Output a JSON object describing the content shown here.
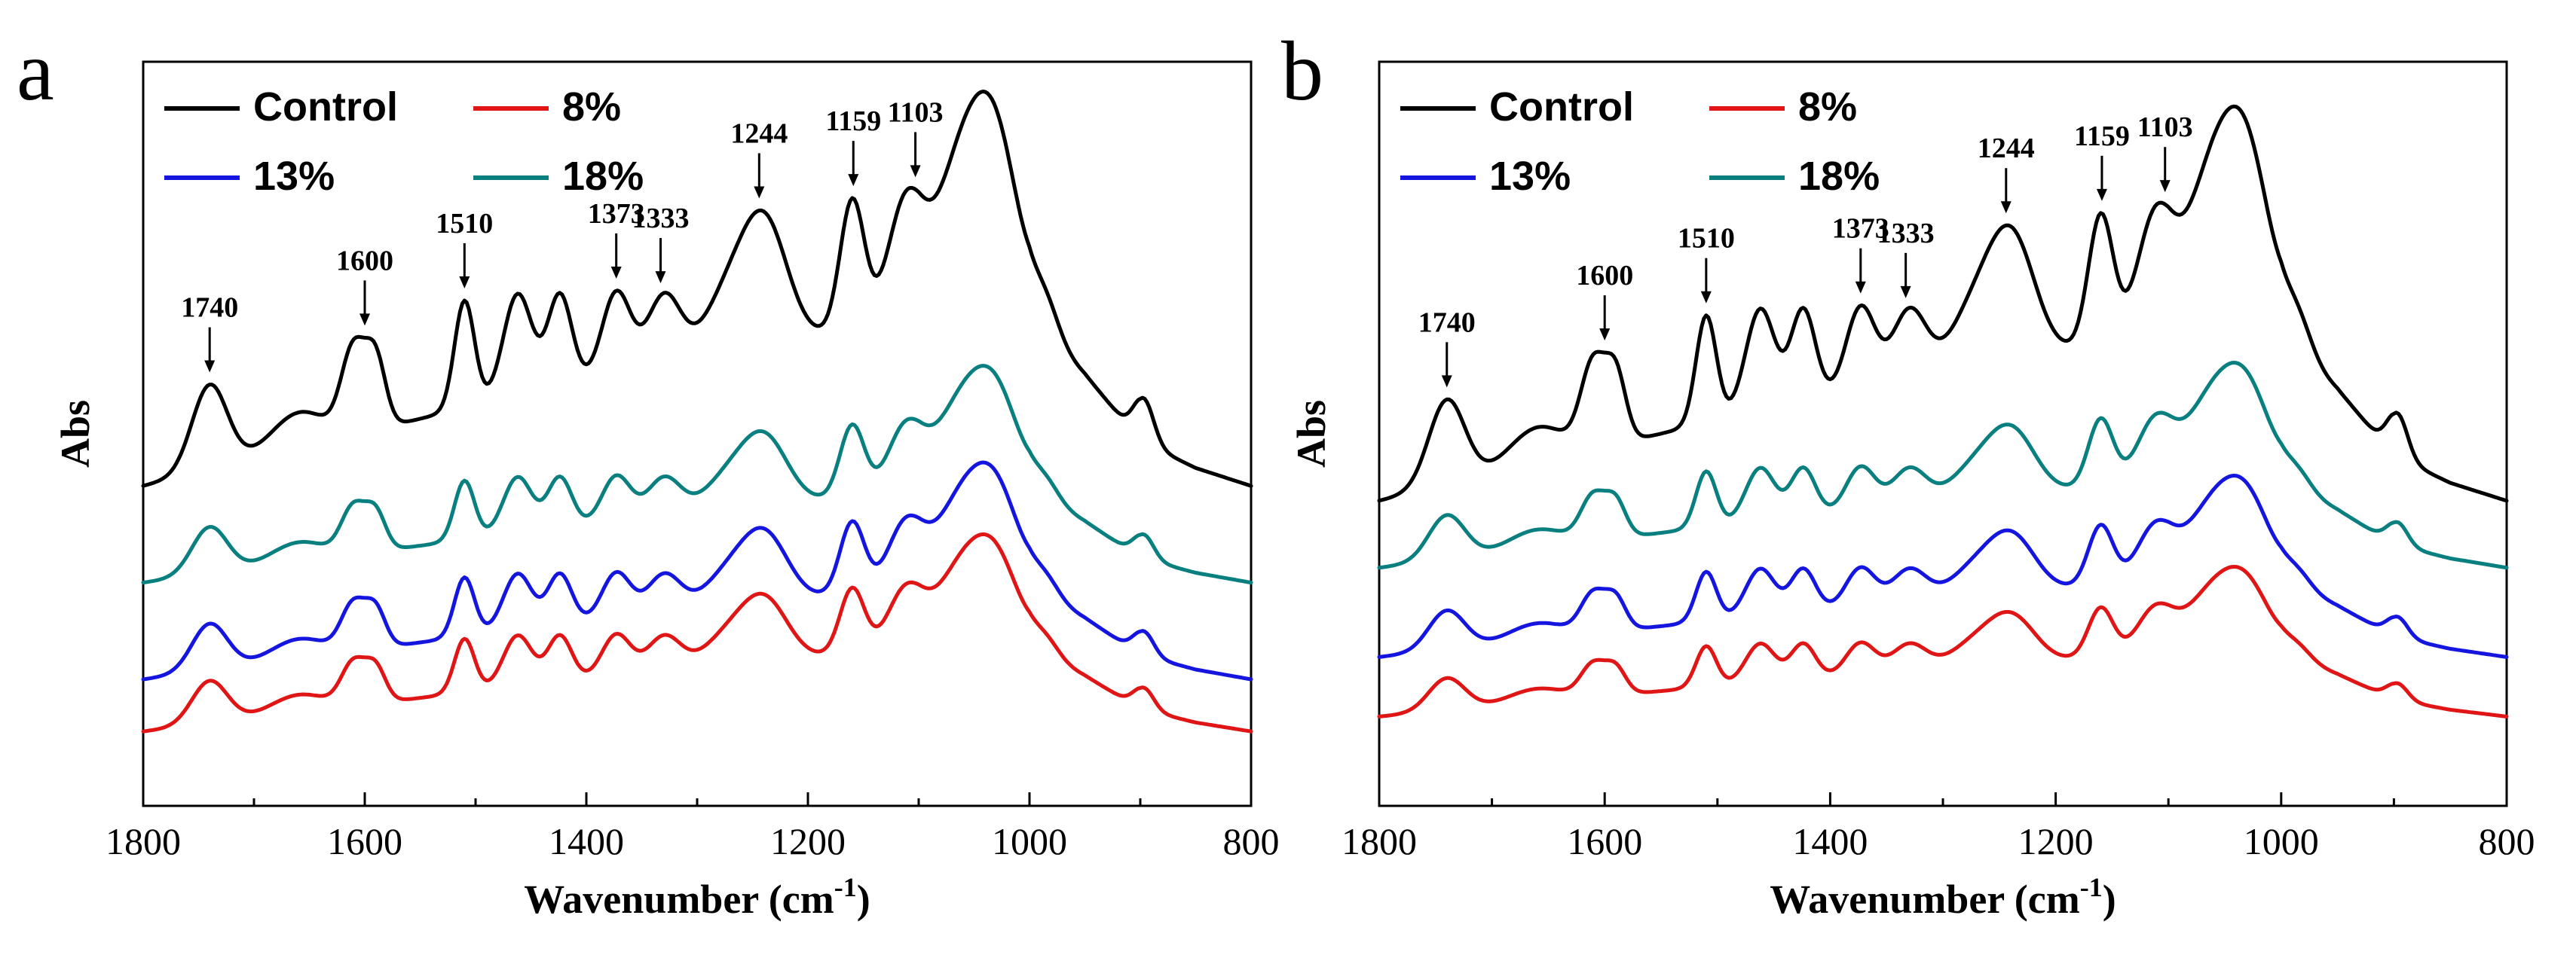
{
  "chart_data": [
    {
      "type": "line",
      "panel_label": "a",
      "xlabel": "Wavenumber",
      "xlabel_unit_base": "(cm",
      "xlabel_unit_exp": "-1",
      "xlabel_unit_close": ")",
      "ylabel": "Abs",
      "xlim": [
        1800,
        800
      ],
      "x_ticks": [
        "1800",
        "1600",
        "1400",
        "1200",
        "1000",
        "800"
      ],
      "x_tick_values": [
        1800,
        1600,
        1400,
        1200,
        1000,
        800
      ],
      "legend": [
        "Control",
        "8%",
        "13%",
        "18%"
      ],
      "annotations": [
        {
          "label": "1740",
          "x": 1740
        },
        {
          "label": "1600",
          "x": 1600
        },
        {
          "label": "1510",
          "x": 1510
        },
        {
          "label": "1373",
          "x": 1373
        },
        {
          "label": "1333",
          "x": 1333
        },
        {
          "label": "1244",
          "x": 1244
        },
        {
          "label": "1159",
          "x": 1159
        },
        {
          "label": "1103",
          "x": 1103
        }
      ],
      "series": [
        {
          "name": "Control",
          "color": "#000000",
          "offset": 0.43,
          "scale": 1.0
        },
        {
          "name": "18%",
          "color": "#0a7f7f",
          "offset": 0.3,
          "scale": 0.55
        },
        {
          "name": "13%",
          "color": "#1515e0",
          "offset": 0.17,
          "scale": 0.55
        },
        {
          "name": "8%",
          "color": "#e01515",
          "offset": 0.1,
          "scale": 0.5
        }
      ]
    },
    {
      "type": "line",
      "panel_label": "b",
      "xlabel": "Wavenumber",
      "xlabel_unit_base": "(cm",
      "xlabel_unit_exp": "-1",
      "xlabel_unit_close": ")",
      "ylabel": "Abs",
      "xlim": [
        1800,
        800
      ],
      "x_ticks": [
        "1800",
        "1600",
        "1400",
        "1200",
        "1000",
        "800"
      ],
      "x_tick_values": [
        1800,
        1600,
        1400,
        1200,
        1000,
        800
      ],
      "legend": [
        "Control",
        "8%",
        "13%",
        "18%"
      ],
      "annotations": [
        {
          "label": "1740",
          "x": 1740
        },
        {
          "label": "1600",
          "x": 1600
        },
        {
          "label": "1510",
          "x": 1510
        },
        {
          "label": "1373",
          "x": 1373
        },
        {
          "label": "1333",
          "x": 1333
        },
        {
          "label": "1244",
          "x": 1244
        },
        {
          "label": "1159",
          "x": 1159
        },
        {
          "label": "1103",
          "x": 1103
        }
      ],
      "series": [
        {
          "name": "Control",
          "color": "#000000",
          "offset": 0.41,
          "scale": 1.0
        },
        {
          "name": "18%",
          "color": "#0a7f7f",
          "offset": 0.32,
          "scale": 0.52
        },
        {
          "name": "13%",
          "color": "#1515e0",
          "offset": 0.2,
          "scale": 0.46
        },
        {
          "name": "8%",
          "color": "#e01515",
          "offset": 0.12,
          "scale": 0.38
        }
      ]
    }
  ]
}
